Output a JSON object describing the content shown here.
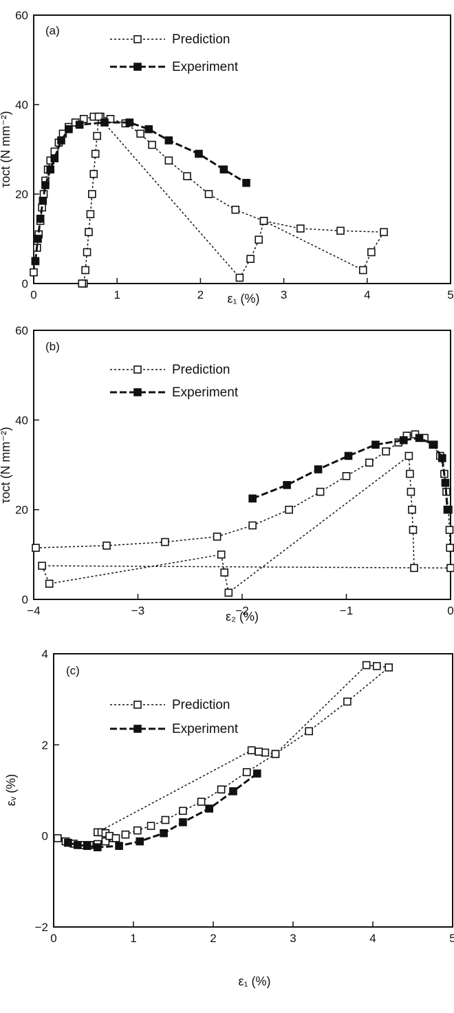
{
  "chart_data": [
    {
      "type": "line",
      "panel_label": "(a)",
      "xlabel": "ε₁ (%)",
      "ylabel": "τoct (N mm⁻²)",
      "xlim": [
        0,
        5
      ],
      "ylim": [
        0,
        60
      ],
      "xticks": [
        "0",
        "1",
        "2",
        "3",
        "4",
        "5"
      ],
      "yticks": [
        "0",
        "20",
        "40",
        "60"
      ],
      "legend_position": "top-left",
      "series": [
        {
          "name": "Prediction",
          "style": "dashed-open-square",
          "x": [
            0,
            0.02,
            0.04,
            0.06,
            0.08,
            0.1,
            0.12,
            0.14,
            0.17,
            0.2,
            0.25,
            0.3,
            0.35,
            0.42,
            0.5,
            0.6,
            0.72,
            0.8,
            0.92,
            1.1,
            1.28,
            1.42,
            1.62,
            1.84,
            2.1,
            2.42,
            2.76,
            3.2,
            3.68,
            4.2,
            4.05,
            3.95,
            2.76,
            2.7,
            2.6,
            2.47,
            0.78,
            0.76,
            0.74,
            0.72,
            0.7,
            0.68,
            0.66,
            0.64,
            0.62,
            0.6,
            0.58
          ],
          "y": [
            2.5,
            5,
            8,
            11,
            14,
            17,
            20,
            23,
            25.5,
            27.5,
            29.5,
            31.5,
            33.5,
            35,
            36,
            36.8,
            37.3,
            37.3,
            36.8,
            35.8,
            33.5,
            31,
            27.5,
            24,
            20,
            16.5,
            14,
            12.3,
            11.8,
            11.5,
            7,
            3,
            14,
            9.8,
            5.5,
            1.3,
            37.3,
            33,
            29,
            24.5,
            20,
            15.5,
            11.5,
            7,
            3,
            0,
            0
          ]
        },
        {
          "name": "Experiment",
          "style": "long-dashed-filled-square",
          "x": [
            0.02,
            0.05,
            0.08,
            0.11,
            0.14,
            0.2,
            0.25,
            0.33,
            0.42,
            0.55,
            0.85,
            1.15,
            1.38,
            1.62,
            1.98,
            2.28,
            2.55
          ],
          "y": [
            5,
            10,
            14.5,
            18.5,
            22,
            25.5,
            28,
            32,
            34.5,
            35.5,
            36,
            36,
            34.5,
            32,
            29,
            25.5,
            22.5
          ]
        }
      ]
    },
    {
      "type": "line",
      "panel_label": "(b)",
      "xlabel": "ε₂ (%)",
      "ylabel": "τoct (N mm⁻²)",
      "xlim": [
        -4,
        0
      ],
      "ylim": [
        0,
        60
      ],
      "xticks": [
        "−4",
        "−3",
        "−2",
        "−1",
        "0"
      ],
      "yticks": [
        "0",
        "20",
        "40",
        "60"
      ],
      "legend_position": "top-left",
      "series": [
        {
          "name": "Prediction",
          "style": "dashed-open-square",
          "x": [
            -3.98,
            -3.3,
            -2.74,
            -2.24,
            -1.9,
            -1.55,
            -1.25,
            -1.0,
            -0.78,
            -0.62,
            -0.5,
            -0.42,
            -0.34,
            -0.25,
            -0.17,
            -0.1,
            -0.06,
            -0.04,
            -0.02,
            -0.01,
            -0.005,
            0,
            -3.92,
            -3.85,
            -2.2,
            -2.17,
            -2.13,
            -0.4,
            -0.39,
            -0.38,
            -0.37,
            -0.36,
            -0.35
          ],
          "y": [
            11.5,
            12,
            12.8,
            14,
            16.5,
            20,
            24,
            27.5,
            30.5,
            33,
            35,
            36.5,
            36.8,
            36,
            34.5,
            32,
            28,
            24,
            20,
            15.5,
            11.5,
            7,
            7.5,
            3.5,
            10,
            6,
            1.5,
            32,
            28,
            24,
            20,
            15.5,
            7
          ]
        },
        {
          "name": "Experiment",
          "style": "long-dashed-filled-square",
          "x": [
            -1.9,
            -1.57,
            -1.27,
            -0.98,
            -0.72,
            -0.45,
            -0.3,
            -0.16,
            -0.08,
            -0.05,
            -0.03
          ],
          "y": [
            22.5,
            25.5,
            29,
            32,
            34.5,
            35.5,
            36,
            34.5,
            31.5,
            26,
            20
          ]
        }
      ]
    },
    {
      "type": "line",
      "panel_label": "(c)",
      "xlabel": "ε₁ (%)",
      "ylabel": "εᵥ (%)",
      "xlim": [
        0,
        5
      ],
      "ylim": [
        -2,
        4
      ],
      "xticks": [
        "0",
        "1",
        "2",
        "3",
        "4",
        "5"
      ],
      "yticks": [
        "−2",
        "0",
        "2",
        "4"
      ],
      "legend_position": "top-left",
      "series": [
        {
          "name": "Prediction",
          "style": "dashed-open-square",
          "x": [
            0.05,
            0.15,
            0.25,
            0.35,
            0.45,
            0.55,
            0.65,
            0.75,
            0.9,
            1.05,
            1.22,
            1.4,
            1.62,
            1.85,
            2.1,
            2.42,
            2.78,
            3.2,
            3.68,
            4.2,
            4.05,
            3.92,
            2.78,
            2.65,
            2.57,
            2.48,
            0.55,
            0.6,
            0.65,
            0.7,
            0.78
          ],
          "y": [
            -0.05,
            -0.12,
            -0.17,
            -0.2,
            -0.2,
            -0.18,
            -0.12,
            -0.05,
            0.03,
            0.12,
            0.22,
            0.35,
            0.55,
            0.75,
            1.02,
            1.4,
            1.8,
            2.3,
            2.95,
            3.7,
            3.73,
            3.75,
            1.8,
            1.83,
            1.85,
            1.88,
            0.08,
            0.08,
            0.06,
            0.0,
            -0.05
          ]
        },
        {
          "name": "Experiment",
          "style": "long-dashed-filled-square",
          "x": [
            0.18,
            0.3,
            0.42,
            0.55,
            0.82,
            1.08,
            1.38,
            1.62,
            1.95,
            2.25,
            2.55
          ],
          "y": [
            -0.15,
            -0.2,
            -0.22,
            -0.25,
            -0.22,
            -0.12,
            0.06,
            0.3,
            0.6,
            0.98,
            1.37
          ]
        }
      ]
    }
  ]
}
